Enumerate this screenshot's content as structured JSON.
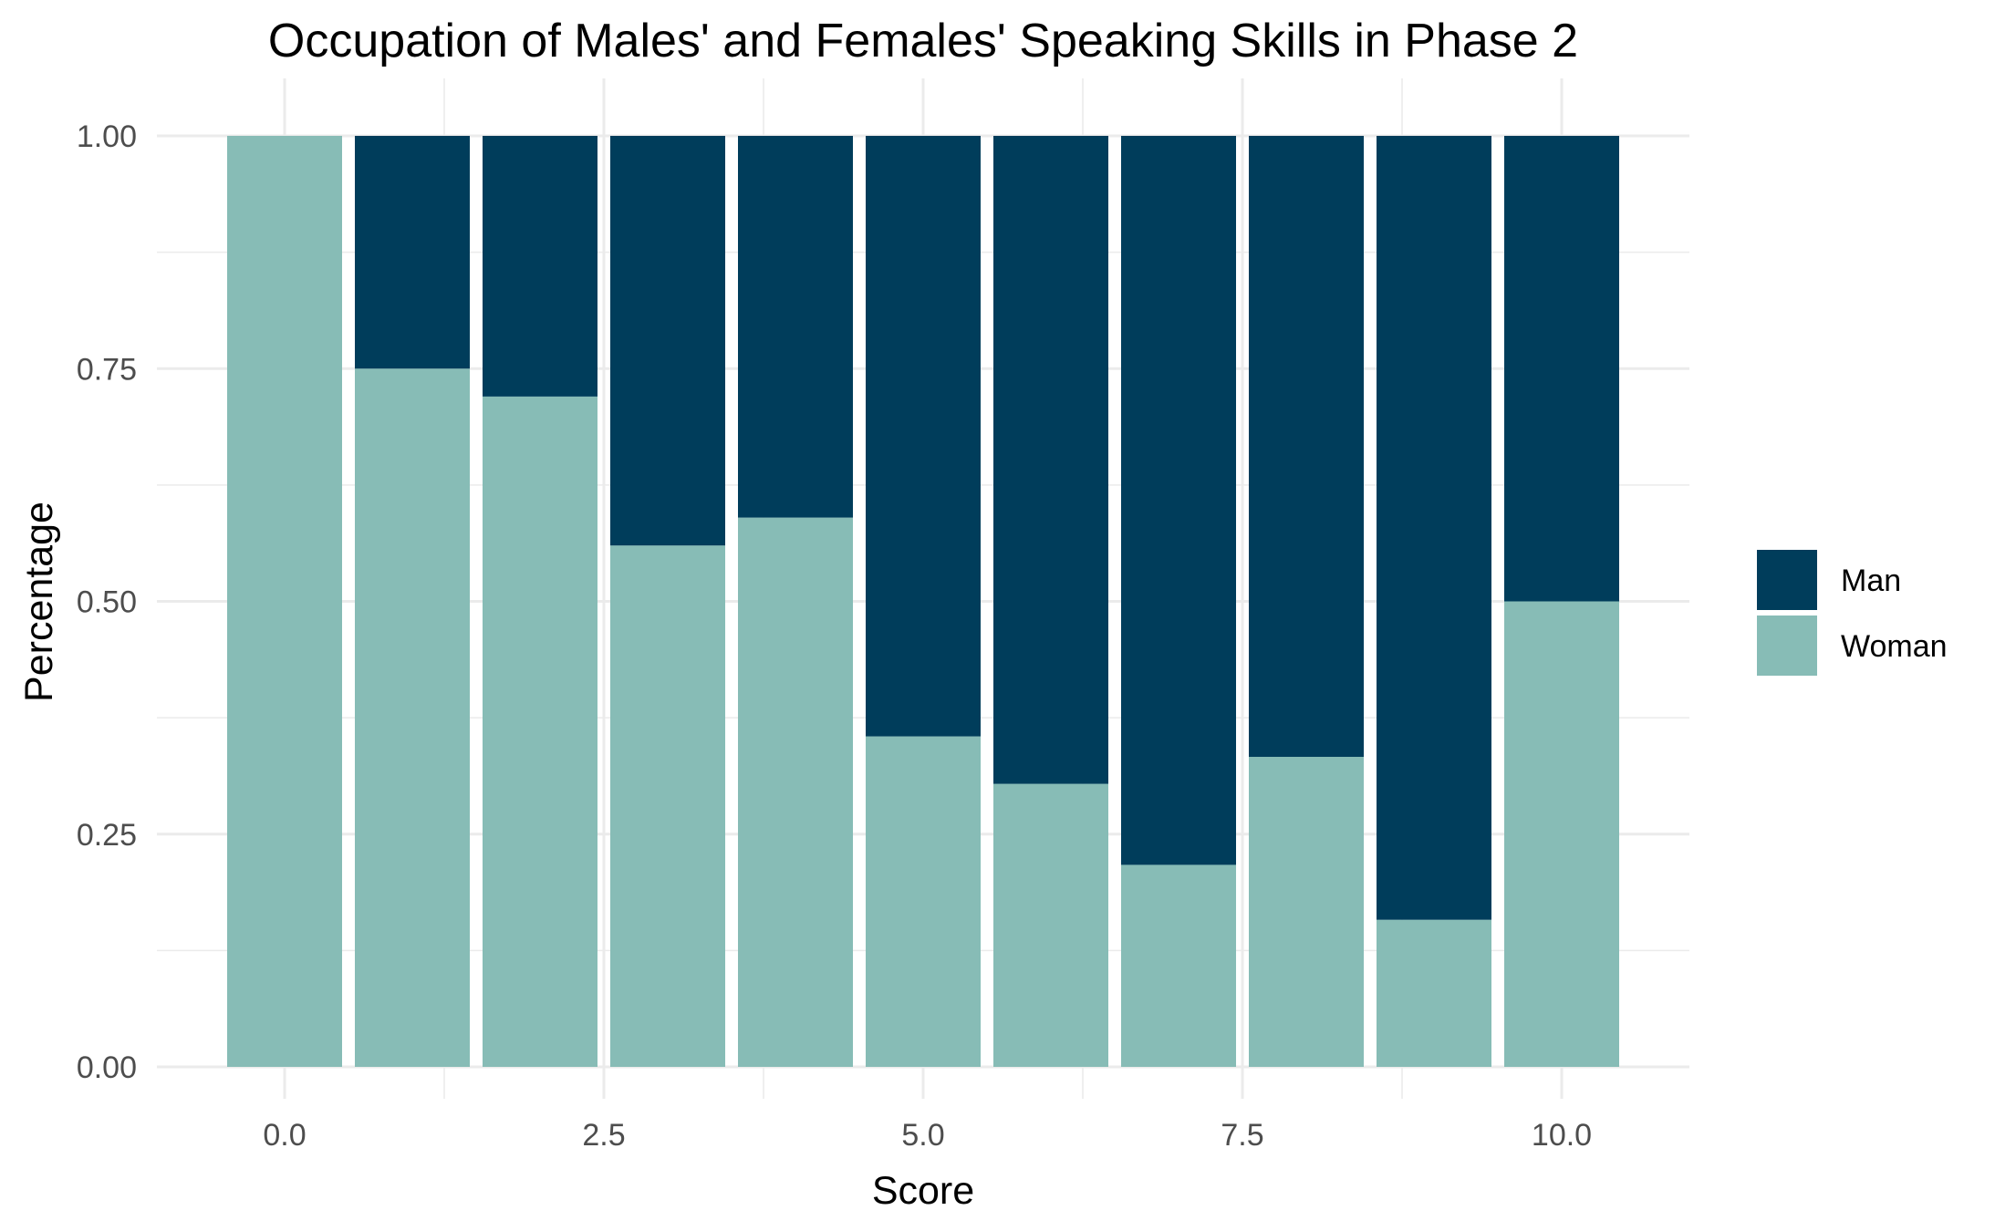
{
  "chart_data": {
    "type": "bar",
    "stacked": true,
    "position": "fill",
    "title": "Occupation of Males' and Females' Speaking Skills in Phase 2",
    "xlabel": "Score",
    "ylabel": "Percentage",
    "x": [
      0,
      1,
      2,
      3,
      4,
      5,
      6,
      7,
      8,
      9,
      10
    ],
    "xlim": [
      -0.5,
      10.5
    ],
    "ylim": [
      0,
      1
    ],
    "xticks": [
      "0.0",
      "2.5",
      "5.0",
      "7.5",
      "10.0"
    ],
    "yticks": [
      "0.00",
      "0.25",
      "0.50",
      "0.75",
      "1.00"
    ],
    "grid": true,
    "legend_position": "right",
    "series": [
      {
        "name": "Man",
        "color": "#003d5b",
        "values": [
          0.0,
          0.25,
          0.28,
          0.44,
          0.41,
          0.645,
          0.696,
          0.783,
          0.667,
          0.842,
          0.5
        ]
      },
      {
        "name": "Woman",
        "color": "#87bcb6",
        "values": [
          1.0,
          0.75,
          0.72,
          0.56,
          0.59,
          0.355,
          0.304,
          0.217,
          0.333,
          0.158,
          0.5
        ]
      }
    ]
  }
}
